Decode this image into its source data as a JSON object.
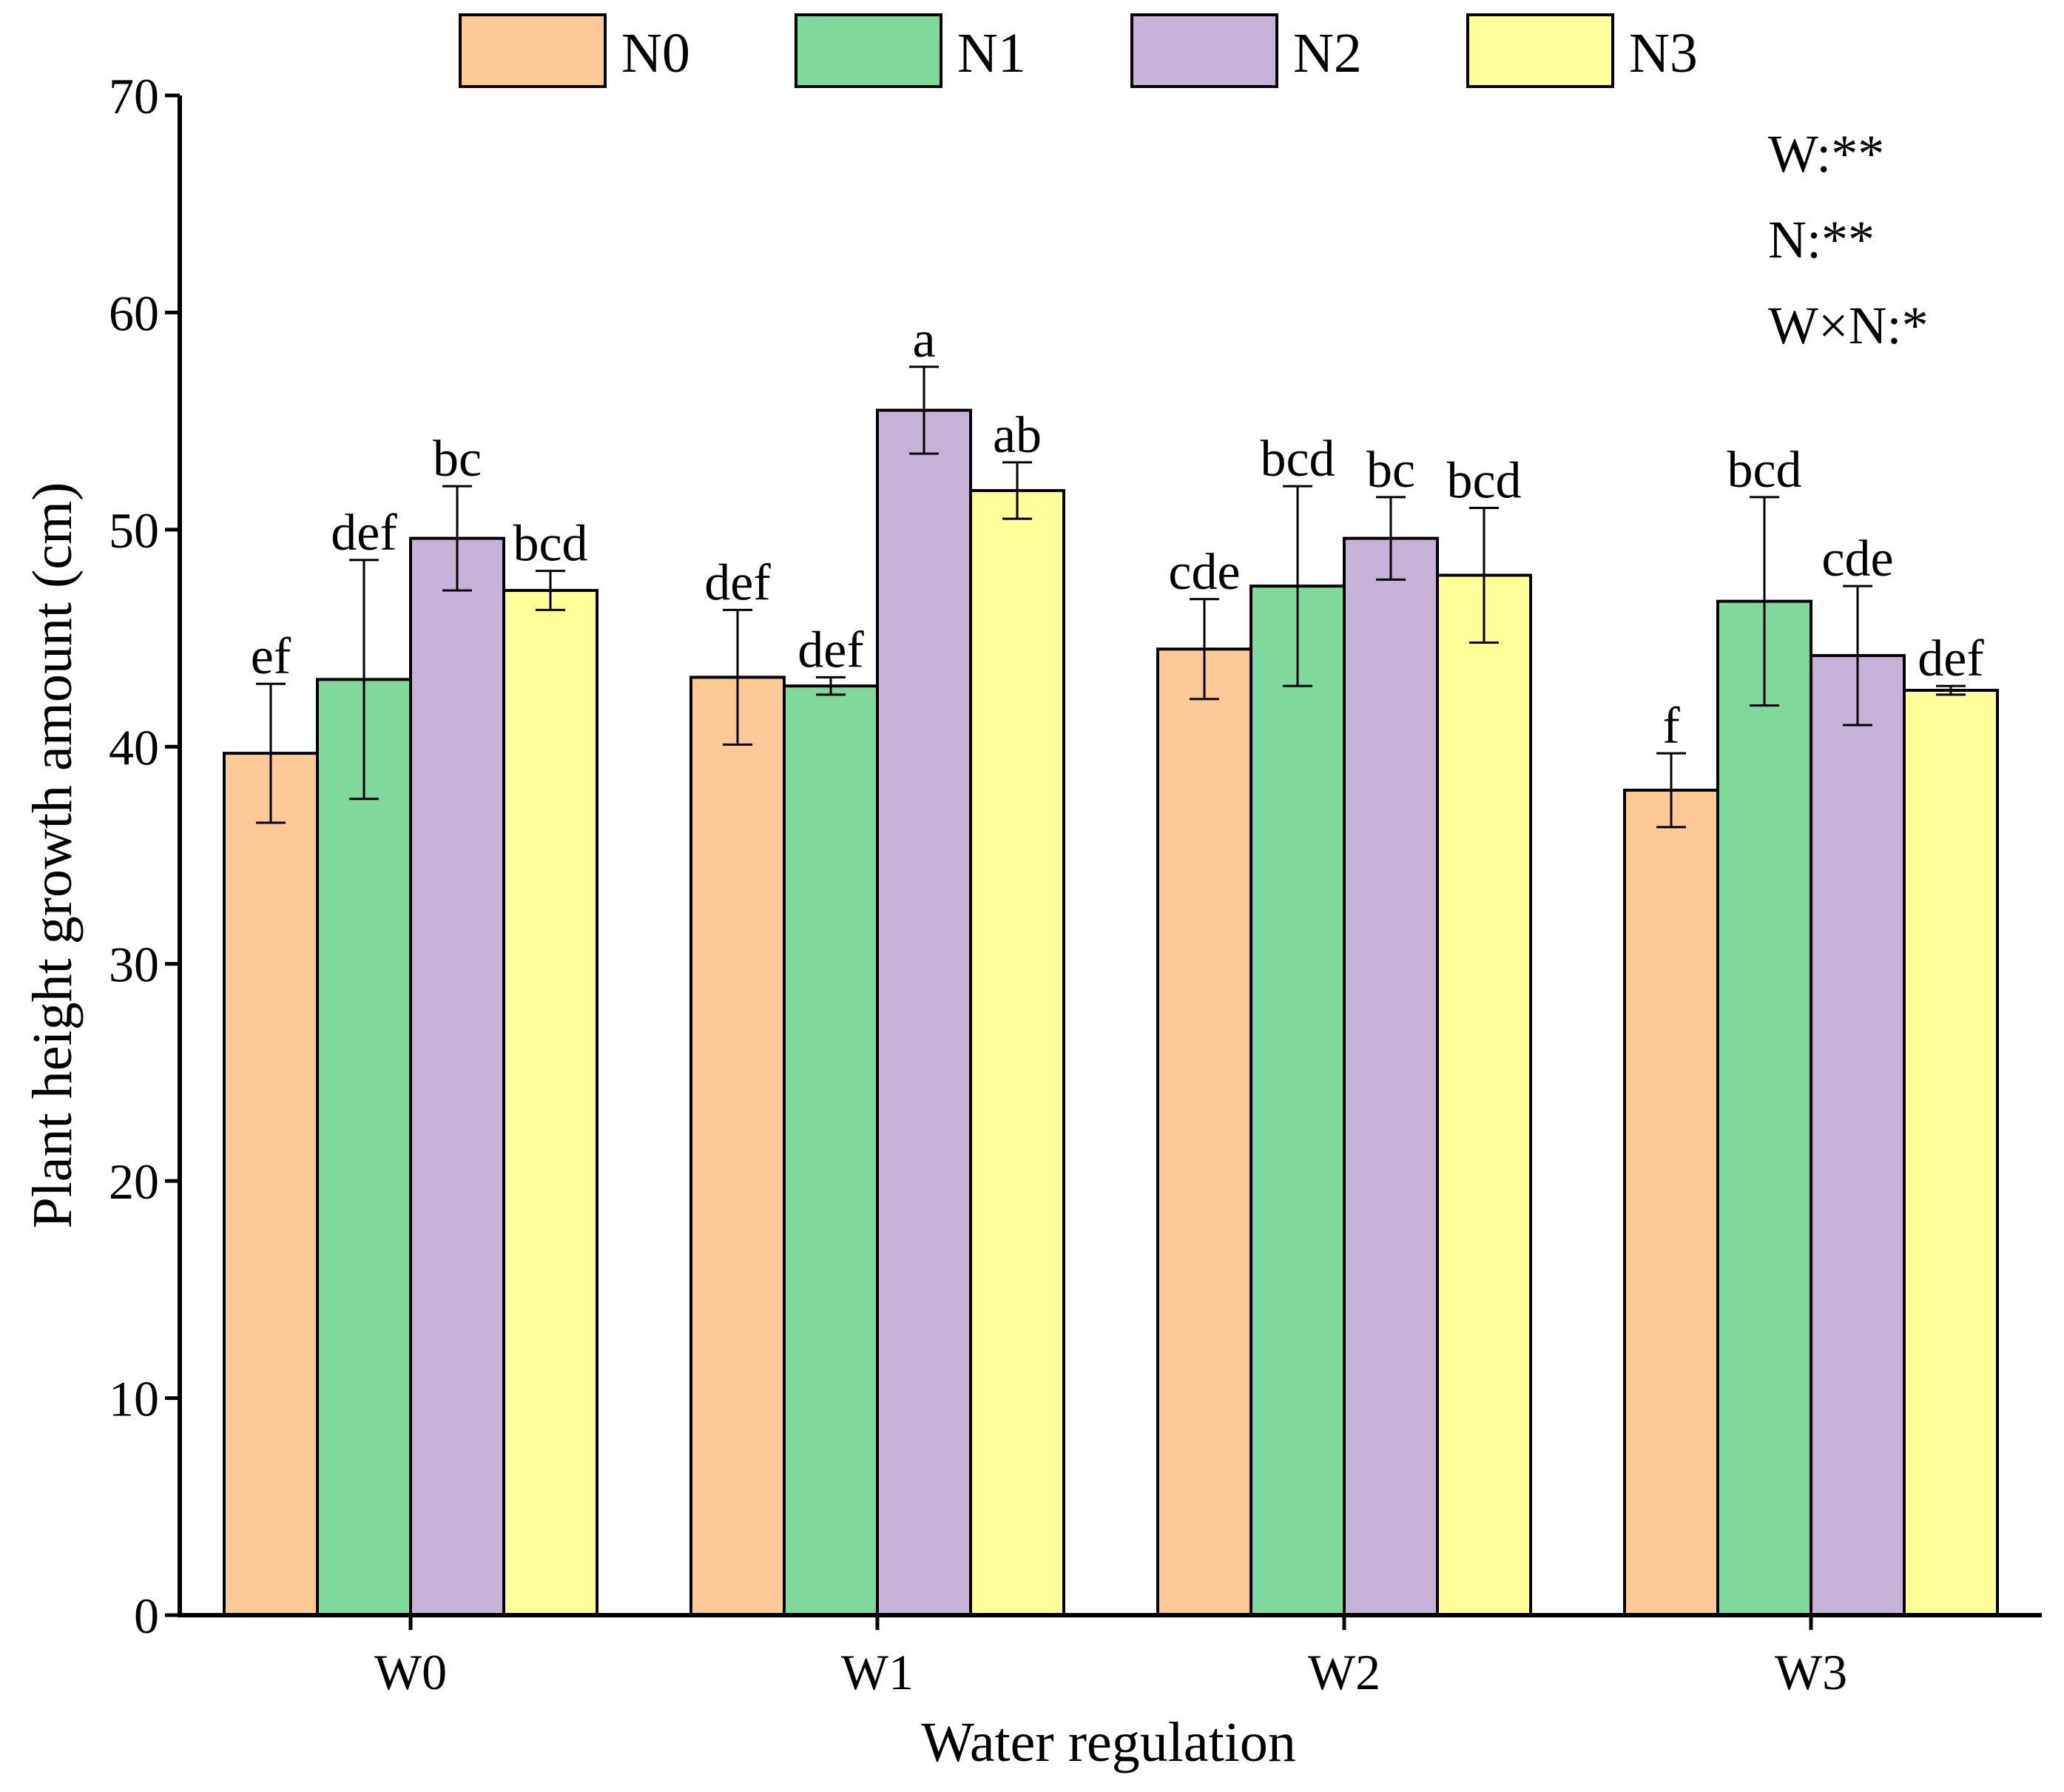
{
  "chart_data": {
    "type": "bar",
    "title": "",
    "xlabel": "Water regulation",
    "ylabel": "Plant height growth amount (cm)",
    "ylim": [
      0,
      70
    ],
    "yticks": [
      0,
      10,
      20,
      30,
      40,
      50,
      60,
      70
    ],
    "categories": [
      "W0",
      "W1",
      "W2",
      "W3"
    ],
    "series": [
      {
        "name": "N0",
        "color": "#FFC896",
        "values": [
          39.7,
          43.2,
          44.5,
          38.0
        ],
        "errors": [
          3.2,
          3.1,
          2.3,
          1.7
        ],
        "letters": [
          "ef",
          "def",
          "cde",
          "f"
        ]
      },
      {
        "name": "N1",
        "color": "#80D99C",
        "values": [
          43.1,
          42.8,
          47.4,
          46.7
        ],
        "errors": [
          5.5,
          0.4,
          4.6,
          4.8
        ],
        "letters": [
          "def",
          "def",
          "bcd",
          "bcd"
        ]
      },
      {
        "name": "N2",
        "color": "#C8B3D8",
        "values": [
          49.6,
          55.5,
          49.6,
          44.2
        ],
        "errors": [
          2.4,
          2.0,
          1.9,
          3.2
        ],
        "letters": [
          "bc",
          "a",
          "bc",
          "cde"
        ]
      },
      {
        "name": "N3",
        "color": "#FFFF99",
        "values": [
          47.2,
          51.8,
          47.9,
          42.6
        ],
        "errors": [
          0.9,
          1.3,
          3.1,
          0.2
        ],
        "letters": [
          "bcd",
          "ab",
          "bcd",
          "def"
        ]
      }
    ],
    "legend_position": "top",
    "annotations": [
      "W:**",
      "N:**",
      "W×N:*"
    ]
  }
}
